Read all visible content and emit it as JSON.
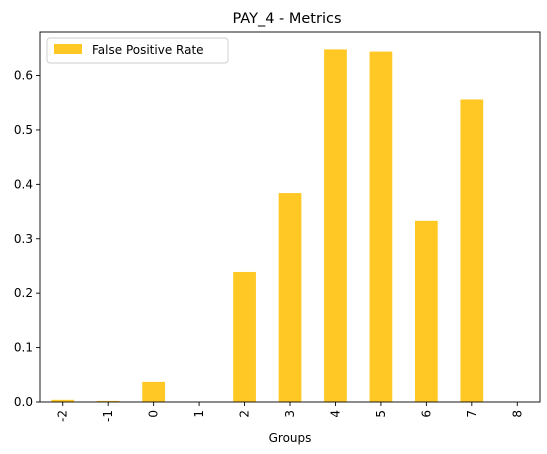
{
  "chart_data": {
    "type": "bar",
    "title": "PAY_4 - Metrics",
    "xlabel": "Groups",
    "ylabel": "",
    "categories": [
      "-2",
      "-1",
      "0",
      "1",
      "2",
      "3",
      "4",
      "5",
      "6",
      "7",
      "8"
    ],
    "series": [
      {
        "name": "False Positive Rate",
        "color": "#ffc824",
        "values": [
          0.004,
          0.002,
          0.037,
          0.0,
          0.239,
          0.384,
          0.648,
          0.644,
          0.333,
          0.556,
          0.0
        ]
      }
    ],
    "ylim": [
      0,
      0.68
    ],
    "yticks": [
      0.0,
      0.1,
      0.2,
      0.3,
      0.4,
      0.5,
      0.6
    ],
    "ytick_labels": [
      "0.0",
      "0.1",
      "0.2",
      "0.3",
      "0.4",
      "0.5",
      "0.6"
    ],
    "xtick_rotation": "vertical",
    "grid": false,
    "legend": "top-left"
  }
}
